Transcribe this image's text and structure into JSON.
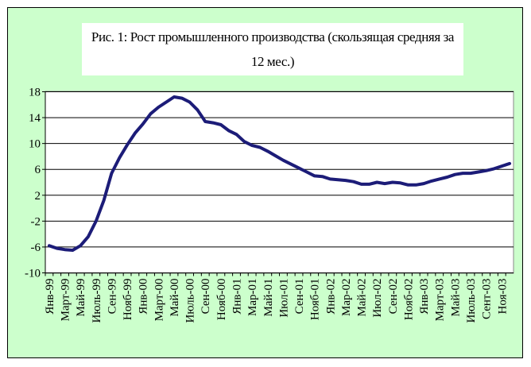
{
  "chart_data": {
    "type": "line",
    "title": "Рис. 1: Рост промышленного производства (скользящая средняя за 12 мес.)",
    "categories": [
      "Янв-99",
      null,
      "Март-99",
      null,
      "Май-99",
      null,
      "Июль-99",
      null,
      "Сен-99",
      null,
      "Нояб-99",
      null,
      "Янв-00",
      null,
      "Март-00",
      null,
      "Май-00",
      null,
      "Июль-00",
      null,
      "Сен-00",
      null,
      "Нояб-00",
      null,
      "Янв-01",
      null,
      "Мар-01",
      null,
      "Май-01",
      null,
      "Июл-01",
      null,
      "Сен-01",
      null,
      "Нояб-01",
      null,
      "Янв-02",
      null,
      "Мар-02",
      null,
      "Май-02",
      null,
      "Июл-02",
      null,
      "Сен-02",
      null,
      "Нояб-02",
      null,
      "Янв-03",
      null,
      "Март-03",
      null,
      "Май-03",
      null,
      "Июль-03",
      null,
      "Сент-03",
      null,
      "Ноя-03",
      null
    ],
    "series": [
      {
        "color": "#1c1c78",
        "values": [
          -5.8,
          -6.2,
          -6.4,
          -6.5,
          -5.8,
          -4.4,
          -2.0,
          1.2,
          5.4,
          7.8,
          9.8,
          11.6,
          13.0,
          14.6,
          15.6,
          16.4,
          17.2,
          17.0,
          16.4,
          15.2,
          13.4,
          13.2,
          12.9,
          12.0,
          11.4,
          10.3,
          9.7,
          9.4,
          8.8,
          8.1,
          7.4,
          6.8,
          6.2,
          5.6,
          5.0,
          4.9,
          4.5,
          4.4,
          4.3,
          4.1,
          3.7,
          3.7,
          4.0,
          3.8,
          4.0,
          3.9,
          3.6,
          3.6,
          3.8,
          4.2,
          4.5,
          4.8,
          5.2,
          5.4,
          5.4,
          5.6,
          5.8,
          6.1,
          6.5,
          6.9
        ]
      }
    ],
    "ylim": [
      -10,
      18
    ],
    "yticks": [
      -10,
      -6,
      -2,
      2,
      6,
      10,
      14,
      18
    ],
    "grid": true
  }
}
